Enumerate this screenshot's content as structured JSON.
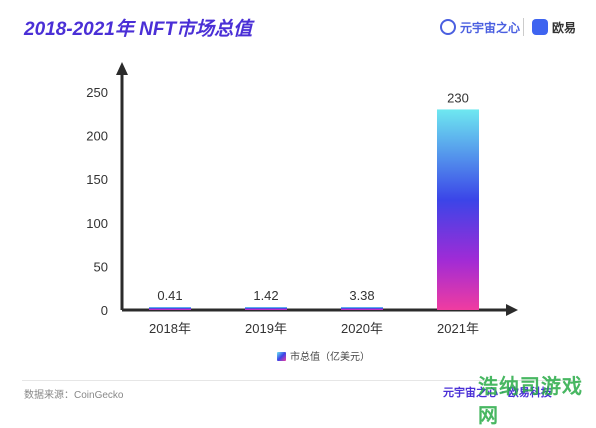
{
  "header": {
    "title": "2018-2021年  NFT市场总值",
    "brand_primary": "元宇宙之心",
    "brand_secondary": "欧易"
  },
  "footer": {
    "source": "数据来源：CoinGecko",
    "right_text": "元宇宙之心 · 欧易科技",
    "watermark": "浩纳司游戏网"
  },
  "colors": {
    "title": "#4a2fd6",
    "axis": "#2b2b2b",
    "bar_gradient": [
      "#6ee8f0",
      "#3b45e8",
      "#a02bd6",
      "#f03ca0"
    ]
  },
  "chart_data": {
    "type": "bar",
    "title": "",
    "xlabel": "",
    "ylabel": "",
    "categories": [
      "2018年",
      "2019年",
      "2020年",
      "2021年"
    ],
    "series": [
      {
        "name": "市总值（亿美元）",
        "values": [
          0.41,
          1.42,
          3.38,
          230
        ]
      }
    ],
    "value_labels": [
      "0.41",
      "1.42",
      "3.38",
      "230"
    ],
    "yticks": [
      0,
      50,
      100,
      150,
      200,
      250
    ],
    "ylim": [
      0,
      250
    ],
    "grid": false,
    "legend": "bottom-center"
  }
}
